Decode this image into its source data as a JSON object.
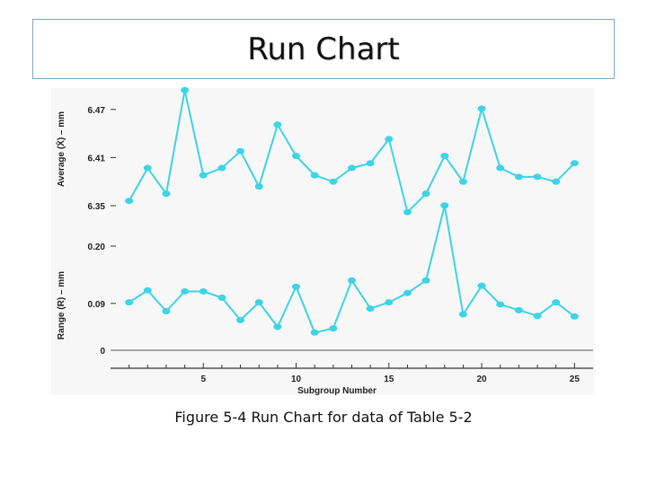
{
  "slide": {
    "title": "Run Chart",
    "caption": "Figure 5-4 Run Chart for data of Table 5-2"
  },
  "chart_data": [
    {
      "type": "line",
      "ylabel": "Average (X̄) – mm",
      "yticks": [
        6.35,
        6.41,
        6.47
      ],
      "ylim": [
        6.34,
        6.5
      ],
      "color": "#3cd4e6",
      "x": [
        1,
        2,
        3,
        4,
        5,
        6,
        7,
        8,
        9,
        10,
        11,
        12,
        13,
        14,
        15,
        16,
        17,
        18,
        19,
        20,
        21,
        22,
        23,
        24,
        25
      ],
      "values": [
        6.356,
        6.397,
        6.365,
        6.494,
        6.388,
        6.397,
        6.418,
        6.374,
        6.451,
        6.412,
        6.388,
        6.38,
        6.397,
        6.403,
        6.433,
        6.342,
        6.365,
        6.412,
        6.38,
        6.471,
        6.397,
        6.386,
        6.386,
        6.38,
        6.403
      ]
    },
    {
      "type": "line",
      "ylabel": "Range (R) – mm",
      "yticks": [
        0,
        0.09,
        0.2
      ],
      "ylim": [
        0,
        0.25
      ],
      "color": "#3cd4e6",
      "x": [
        1,
        2,
        3,
        4,
        5,
        6,
        7,
        8,
        9,
        10,
        11,
        12,
        13,
        14,
        15,
        16,
        17,
        18,
        19,
        20,
        21,
        22,
        23,
        24,
        25
      ],
      "values": [
        0.092,
        0.115,
        0.075,
        0.113,
        0.113,
        0.101,
        0.058,
        0.092,
        0.045,
        0.122,
        0.034,
        0.042,
        0.134,
        0.08,
        0.092,
        0.11,
        0.134,
        0.278,
        0.069,
        0.124,
        0.088,
        0.077,
        0.066,
        0.092,
        0.065
      ]
    }
  ],
  "x_axis": {
    "label": "Subgroup Number",
    "ticks": [
      5,
      10,
      15,
      20,
      25
    ],
    "range": [
      0,
      26
    ]
  }
}
